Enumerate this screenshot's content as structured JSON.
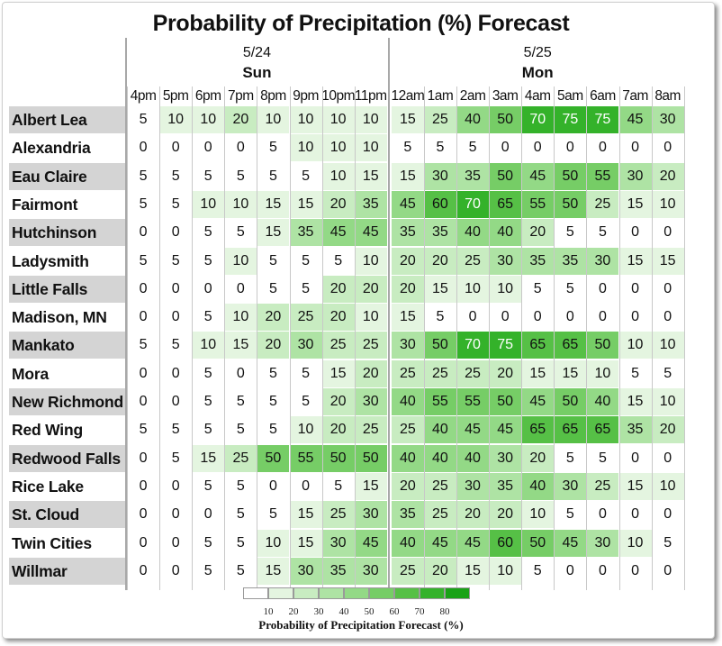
{
  "chart_data": {
    "type": "heatmap",
    "title": "Probability of Precipitation (%) Forecast",
    "days": [
      {
        "date": "5/24",
        "day": "Sun",
        "start_index": 0,
        "count": 8
      },
      {
        "date": "5/25",
        "day": "Mon",
        "start_index": 8,
        "count": 9
      }
    ],
    "x": [
      "4pm",
      "5pm",
      "6pm",
      "7pm",
      "8pm",
      "9pm",
      "10pm",
      "11pm",
      "12am",
      "1am",
      "2am",
      "3am",
      "4am",
      "5am",
      "6am",
      "7am",
      "8am"
    ],
    "rows": [
      {
        "name": "Albert Lea",
        "values": [
          5,
          10,
          10,
          20,
          10,
          10,
          10,
          10,
          15,
          25,
          40,
          50,
          70,
          75,
          75,
          45,
          30
        ]
      },
      {
        "name": "Alexandria",
        "values": [
          0,
          0,
          0,
          0,
          5,
          10,
          10,
          10,
          5,
          5,
          5,
          0,
          0,
          0,
          0,
          0,
          0
        ]
      },
      {
        "name": "Eau Claire",
        "values": [
          5,
          5,
          5,
          5,
          5,
          5,
          10,
          15,
          15,
          30,
          35,
          50,
          45,
          50,
          55,
          30,
          20
        ]
      },
      {
        "name": "Fairmont",
        "values": [
          5,
          5,
          10,
          10,
          15,
          15,
          20,
          35,
          45,
          60,
          70,
          65,
          55,
          50,
          25,
          15,
          10
        ]
      },
      {
        "name": "Hutchinson",
        "values": [
          0,
          0,
          5,
          5,
          15,
          35,
          45,
          45,
          35,
          35,
          40,
          40,
          20,
          5,
          5,
          0,
          0
        ]
      },
      {
        "name": "Ladysmith",
        "values": [
          5,
          5,
          5,
          10,
          5,
          5,
          5,
          10,
          20,
          20,
          25,
          30,
          35,
          35,
          30,
          15,
          15
        ]
      },
      {
        "name": "Little Falls",
        "values": [
          0,
          0,
          0,
          0,
          5,
          5,
          20,
          20,
          20,
          15,
          10,
          10,
          5,
          5,
          0,
          0,
          0
        ]
      },
      {
        "name": "Madison, MN",
        "values": [
          0,
          0,
          5,
          10,
          20,
          25,
          20,
          10,
          15,
          5,
          0,
          0,
          0,
          0,
          0,
          0,
          0
        ]
      },
      {
        "name": "Mankato",
        "values": [
          5,
          5,
          10,
          15,
          20,
          30,
          25,
          25,
          30,
          50,
          70,
          75,
          65,
          65,
          50,
          10,
          10
        ]
      },
      {
        "name": "Mora",
        "values": [
          0,
          0,
          5,
          0,
          5,
          5,
          15,
          20,
          25,
          25,
          25,
          20,
          15,
          15,
          10,
          5,
          5
        ]
      },
      {
        "name": "New Richmond",
        "values": [
          0,
          0,
          5,
          5,
          5,
          5,
          20,
          30,
          40,
          55,
          55,
          50,
          45,
          50,
          40,
          15,
          10
        ]
      },
      {
        "name": "Red Wing",
        "values": [
          5,
          5,
          5,
          5,
          5,
          10,
          20,
          25,
          25,
          40,
          45,
          45,
          65,
          65,
          65,
          35,
          20
        ]
      },
      {
        "name": "Redwood Falls",
        "values": [
          0,
          5,
          15,
          25,
          50,
          55,
          50,
          50,
          40,
          40,
          40,
          30,
          20,
          5,
          5,
          0,
          0
        ]
      },
      {
        "name": "Rice Lake",
        "values": [
          0,
          0,
          5,
          5,
          0,
          0,
          5,
          15,
          20,
          25,
          30,
          35,
          40,
          30,
          25,
          15,
          10
        ]
      },
      {
        "name": "St. Cloud",
        "values": [
          0,
          0,
          0,
          5,
          5,
          15,
          25,
          30,
          35,
          25,
          20,
          20,
          10,
          5,
          0,
          0,
          0
        ]
      },
      {
        "name": "Twin Cities",
        "values": [
          0,
          0,
          5,
          5,
          10,
          15,
          30,
          45,
          40,
          45,
          45,
          60,
          50,
          45,
          30,
          10,
          5
        ]
      },
      {
        "name": "Willmar",
        "values": [
          0,
          0,
          5,
          5,
          15,
          30,
          35,
          30,
          25,
          20,
          15,
          10,
          5,
          0,
          0,
          0,
          0
        ]
      }
    ],
    "legend": {
      "ticks": [
        "10",
        "20",
        "30",
        "40",
        "50",
        "60",
        "70",
        "80"
      ],
      "title": "Probability of Precipitation Forecast (%)",
      "colors": [
        "#ffffff",
        "#e4f5e0",
        "#c8ecc1",
        "#aee3a4",
        "#93d986",
        "#76cd66",
        "#56c046",
        "#34b22a",
        "#19a216"
      ]
    },
    "color_bins": [
      {
        "min": 0,
        "max": 9,
        "color": "#ffffff"
      },
      {
        "min": 10,
        "max": 19,
        "color": "#e4f5e0"
      },
      {
        "min": 20,
        "max": 29,
        "color": "#c8ecc1"
      },
      {
        "min": 30,
        "max": 39,
        "color": "#aee3a4"
      },
      {
        "min": 40,
        "max": 49,
        "color": "#93d986"
      },
      {
        "min": 50,
        "max": 59,
        "color": "#76cd66"
      },
      {
        "min": 60,
        "max": 69,
        "color": "#56c046"
      },
      {
        "min": 70,
        "max": 79,
        "color": "#34b22a"
      },
      {
        "min": 80,
        "max": 100,
        "color": "#19a216"
      }
    ],
    "light_text_threshold": 70,
    "row_label_background": "#d4d4d4"
  }
}
